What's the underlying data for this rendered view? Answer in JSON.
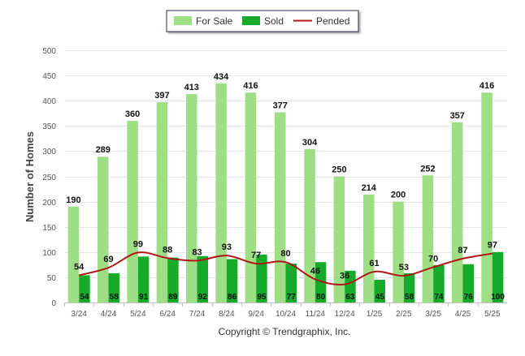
{
  "chart_data": {
    "type": "bar",
    "categories": [
      "3/24",
      "4/24",
      "5/24",
      "6/24",
      "7/24",
      "8/24",
      "9/24",
      "10/24",
      "11/24",
      "12/24",
      "1/25",
      "2/25",
      "3/25",
      "4/25",
      "5/25"
    ],
    "series": [
      {
        "name": "For Sale",
        "type": "bar",
        "color": "#9edf86",
        "values": [
          190,
          289,
          360,
          397,
          413,
          434,
          416,
          377,
          304,
          250,
          214,
          200,
          252,
          357,
          416
        ]
      },
      {
        "name": "Sold",
        "type": "bar",
        "color": "#17a92a",
        "values": [
          54,
          58,
          91,
          89,
          92,
          86,
          95,
          77,
          80,
          63,
          45,
          58,
          74,
          76,
          100
        ]
      },
      {
        "name": "Pended",
        "type": "line",
        "color": "#b01515",
        "values": [
          54,
          69,
          99,
          88,
          83,
          93,
          77,
          80,
          46,
          36,
          61,
          53,
          70,
          87,
          97
        ]
      }
    ],
    "title": "",
    "xlabel": "",
    "ylabel": "Number of Homes",
    "ylim": [
      0,
      500
    ],
    "yticks": [
      0,
      50,
      100,
      150,
      200,
      250,
      300,
      350,
      400,
      450,
      500
    ],
    "grid": true,
    "legend_position": "top-center"
  },
  "footer": {
    "copyright": "Copyright © Trendgraphix, Inc."
  }
}
